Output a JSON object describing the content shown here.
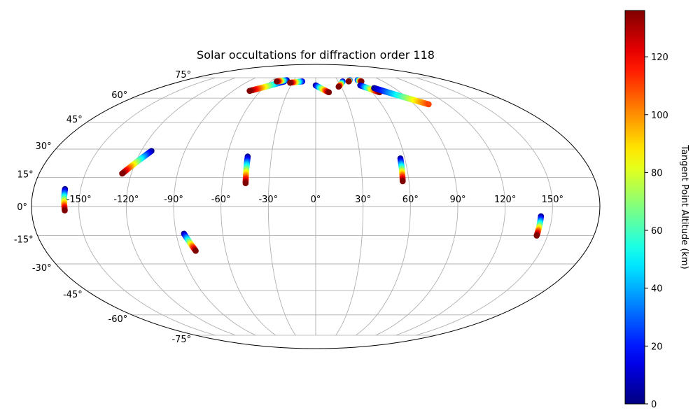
{
  "chart_data": {
    "type": "scatter",
    "projection": "Mollweide (all-sky)",
    "title": "Solar occultations for diffraction order 118",
    "longitude_tick_labels": [
      "-150°",
      "-120°",
      "-90°",
      "-60°",
      "-30°",
      "0°",
      "30°",
      "60°",
      "90°",
      "120°",
      "150°"
    ],
    "latitude_tick_labels": [
      "-75°",
      "-60°",
      "-45°",
      "-30°",
      "-15°",
      "0°",
      "15°",
      "30°",
      "45°",
      "60°",
      "75°"
    ],
    "grid": true,
    "colorbar": {
      "label": "Tangent Point Altitude (km)",
      "colormap": "jet",
      "range": [
        0,
        136
      ],
      "tick_labels": [
        "0",
        "20",
        "40",
        "60",
        "80",
        "100",
        "120"
      ],
      "tick_values": [
        0,
        20,
        40,
        60,
        80,
        100,
        120
      ]
    },
    "tracks": [
      {
        "lon_start": -160,
        "lat_start": 9,
        "lon_end": -159,
        "lat_end": -2,
        "alt_start": 2,
        "alt_end": 136
      },
      {
        "lon_start": -113,
        "lat_start": 29,
        "lon_end": -126,
        "lat_end": 17,
        "alt_start": 2,
        "alt_end": 136
      },
      {
        "lon_start": -85,
        "lat_start": -14,
        "lon_end": -80,
        "lat_end": -23,
        "alt_start": 2,
        "alt_end": 136
      },
      {
        "lon_start": -46,
        "lat_start": 26,
        "lon_end": -45,
        "lat_end": 12,
        "alt_start": 2,
        "alt_end": 136
      },
      {
        "lon_start": -42,
        "lat_start": 72,
        "lon_end": -72,
        "lat_end": 65,
        "alt_start": 2,
        "alt_end": 136
      },
      {
        "lon_start": -40,
        "lat_start": 73,
        "lon_end": -52,
        "lat_end": 72,
        "alt_start": 2,
        "alt_end": 136
      },
      {
        "lon_start": -18,
        "lat_start": 72,
        "lon_end": -33,
        "lat_end": 71,
        "alt_start": 10,
        "alt_end": 136
      },
      {
        "lon_start": 0,
        "lat_start": 69,
        "lon_end": 14,
        "lat_end": 64,
        "alt_start": 2,
        "alt_end": 136
      },
      {
        "lon_start": 36,
        "lat_start": 72,
        "lon_end": 27,
        "lat_end": 68,
        "alt_start": 10,
        "alt_end": 136
      },
      {
        "lon_start": 47,
        "lat_start": 73,
        "lon_end": 44,
        "lat_end": 72,
        "alt_start": 10,
        "alt_end": 136
      },
      {
        "lon_start": 58,
        "lat_start": 73,
        "lon_end": 61,
        "lat_end": 72,
        "alt_start": 20,
        "alt_end": 136
      },
      {
        "lon_start": 54,
        "lat_start": 69,
        "lon_end": 68,
        "lat_end": 64,
        "alt_start": 2,
        "alt_end": 136
      },
      {
        "lon_start": 67,
        "lat_start": 67,
        "lon_end": 103,
        "lat_end": 56,
        "alt_start": 2,
        "alt_end": 110
      },
      {
        "lon_start": 57,
        "lat_start": 25,
        "lon_end": 56,
        "lat_end": 13,
        "alt_start": 2,
        "alt_end": 136
      },
      {
        "lon_start": 143,
        "lat_start": -5,
        "lon_end": 143,
        "lat_end": -15,
        "alt_start": 2,
        "alt_end": 136
      }
    ]
  }
}
